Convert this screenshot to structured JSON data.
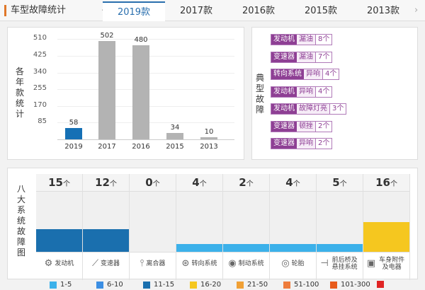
{
  "header": {
    "title": "车型故障统计",
    "prev": "‹",
    "next": "›",
    "tabs": [
      "2019款",
      "2017款",
      "2016款",
      "2015款",
      "2013款"
    ],
    "active": 0
  },
  "chart_data": {
    "type": "bar",
    "ylabel": "各年款统计",
    "categories": [
      "2019",
      "2017",
      "2016",
      "2015",
      "2013"
    ],
    "values": [
      58,
      502,
      480,
      34,
      10
    ],
    "yticks": [
      85,
      170,
      255,
      340,
      425,
      510
    ],
    "ylim": [
      0,
      510
    ],
    "highlight_color": "#1570b5",
    "bar_color": "#b3b3b3"
  },
  "typical": {
    "label": "典型故障",
    "items": [
      {
        "system": "发动机",
        "fault": "漏油",
        "count": "8个"
      },
      {
        "system": "变速器",
        "fault": "漏油",
        "count": "7个"
      },
      {
        "system": "转向系统",
        "fault": "异响",
        "count": "4个"
      },
      {
        "system": "发动机",
        "fault": "异响",
        "count": "4个"
      },
      {
        "system": "发动机",
        "fault": "故障灯亮",
        "count": "3个"
      },
      {
        "system": "变速器",
        "fault": "顿挫",
        "count": "2个"
      },
      {
        "system": "变速器",
        "fault": "异响",
        "count": "2个"
      }
    ]
  },
  "systems": {
    "label": "八大系统故障图",
    "unit": "个",
    "items": [
      {
        "name": "发动机",
        "count": 15,
        "icon": "engine-icon",
        "glyph": "⚙"
      },
      {
        "name": "变速器",
        "count": 12,
        "icon": "gear-shift-icon",
        "glyph": "⟋"
      },
      {
        "name": "离合器",
        "count": 0,
        "icon": "clutch-pedal-icon",
        "glyph": "⫯"
      },
      {
        "name": "转向系统",
        "count": 4,
        "icon": "steering-wheel-icon",
        "glyph": "⊛"
      },
      {
        "name": "制动系统",
        "count": 2,
        "icon": "brake-disc-icon",
        "glyph": "◉"
      },
      {
        "name": "轮胎",
        "count": 4,
        "icon": "tire-icon",
        "glyph": "◎"
      },
      {
        "name": "前后桥及悬挂系统",
        "count": 5,
        "icon": "axle-icon",
        "glyph": "⊣"
      },
      {
        "name": "车身附件及电器",
        "count": 16,
        "icon": "body-electric-icon",
        "glyph": "▣"
      }
    ]
  },
  "legend": [
    {
      "label": "1-5",
      "color": "#3cb1ea"
    },
    {
      "label": "6-10",
      "color": "#3b8ee3"
    },
    {
      "label": "11-15",
      "color": "#1a6fae"
    },
    {
      "label": "16-20",
      "color": "#f5c71f"
    },
    {
      "label": "21-50",
      "color": "#f0a035"
    },
    {
      "label": "51-100",
      "color": "#ee7c3c"
    },
    {
      "label": "101-300",
      "color": "#e85b1c"
    },
    {
      "label": "",
      "color": "#e02424"
    }
  ]
}
